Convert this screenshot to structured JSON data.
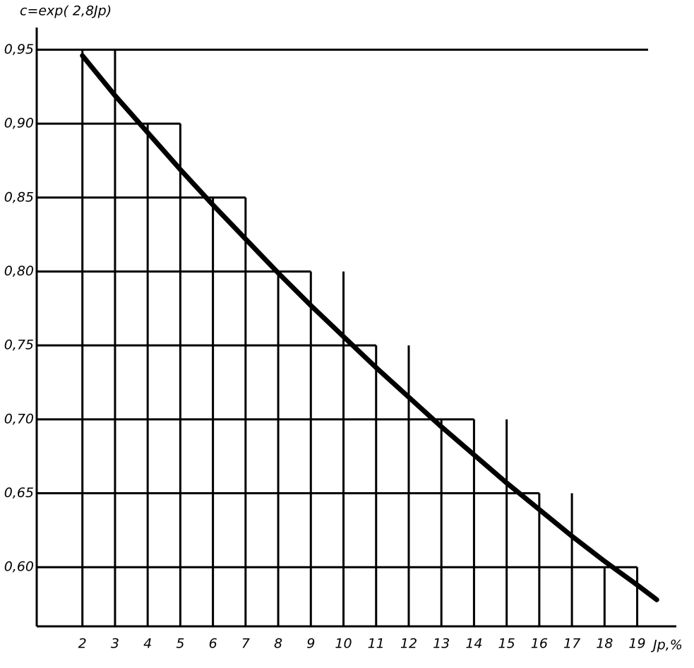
{
  "chart_data": {
    "type": "line",
    "title": "c=exp( 2,8Jp)",
    "x_label": "Jp,%",
    "x": [
      2,
      3,
      4,
      5,
      6,
      7,
      8,
      9,
      10,
      11,
      12,
      13,
      14,
      15,
      16,
      17,
      18,
      19,
      19.6
    ],
    "values": [
      0.946,
      0.919,
      0.894,
      0.869,
      0.845,
      0.822,
      0.799,
      0.777,
      0.756,
      0.735,
      0.715,
      0.695,
      0.676,
      0.657,
      0.639,
      0.621,
      0.604,
      0.588,
      0.578
    ],
    "color": "#000000",
    "xlim": [
      0.6,
      20.2
    ],
    "xticks": [
      2,
      3,
      4,
      5,
      6,
      7,
      8,
      9,
      10,
      11,
      12,
      13,
      14,
      15,
      16,
      17,
      18,
      19
    ],
    "ylim": [
      0.56,
      0.965
    ],
    "yticks": [
      {
        "value": 0.6,
        "label": "0,60"
      },
      {
        "value": 0.65,
        "label": "0,65"
      },
      {
        "value": 0.7,
        "label": "0,70"
      },
      {
        "value": 0.75,
        "label": "0,75"
      },
      {
        "value": 0.8,
        "label": "0,80"
      },
      {
        "value": 0.85,
        "label": "0,85"
      },
      {
        "value": 0.9,
        "label": "0,90"
      },
      {
        "value": 0.95,
        "label": "0,95"
      }
    ],
    "grid": true
  }
}
